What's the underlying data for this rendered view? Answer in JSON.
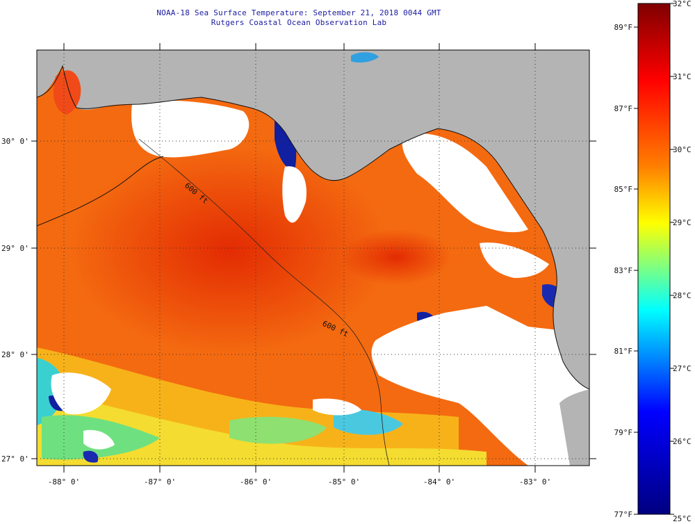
{
  "title": {
    "line1": "NOAA-18 Sea Surface Temperature:  September 21, 2018 0044 GMT",
    "line2": "Rutgers Coastal Ocean Observation Lab"
  },
  "map": {
    "lat_ticks": [
      "30° 0'",
      "29° 0'",
      "28° 0'",
      "27° 0'"
    ],
    "lon_ticks": [
      "-88° 0'",
      "-87° 0'",
      "-86° 0'",
      "-85° 0'",
      "-84° 0'",
      "-83° 0'"
    ],
    "isobath_label_1": "600 ft",
    "isobath_label_2": "600 ft",
    "colors": {
      "land": "#b4b4b4",
      "cloud": "#ffffff",
      "frame": "#000000"
    }
  },
  "colorbar": {
    "celsius": [
      "32°C",
      "31°C",
      "30°C",
      "29°C",
      "28°C",
      "27°C",
      "26°C",
      "25°C"
    ],
    "fahrenheit": [
      "89°F",
      "87°F",
      "85°F",
      "83°F",
      "81°F",
      "79°F",
      "77°F"
    ],
    "stops": [
      "#7f0000",
      "#ff0000",
      "#ff8000",
      "#ffff00",
      "#00ffff",
      "#0000ff",
      "#000080"
    ]
  }
}
